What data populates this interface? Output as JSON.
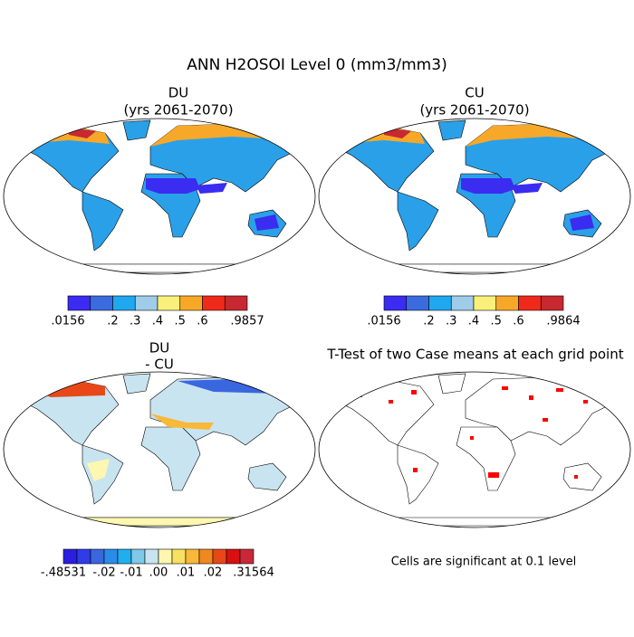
{
  "title": "ANN H2OSOI Level 0 (mm3/mm3)",
  "panels": [
    {
      "title": [
        "DU",
        "(yrs 2061-2070)"
      ],
      "colorbar": {
        "colors": [
          "#3a2cf0",
          "#3a6ce0",
          "#20a8ee",
          "#9fcce8",
          "#f8f07a",
          "#f8a828",
          "#f02a1a",
          "#c82830"
        ],
        "labels": [
          ".0156",
          ".2",
          ".3",
          ".4",
          ".5",
          ".6",
          ".9857"
        ]
      }
    },
    {
      "title": [
        "CU",
        "(yrs 2061-2070)"
      ],
      "colorbar": {
        "colors": [
          "#3a2cf0",
          "#3a6ce0",
          "#20a8ee",
          "#9fcce8",
          "#f8f07a",
          "#f8a828",
          "#f02a1a",
          "#c82830"
        ],
        "labels": [
          ".0156",
          ".2",
          ".3",
          ".4",
          ".5",
          ".6",
          ".9864"
        ]
      }
    },
    {
      "title": [
        "DU",
        "- CU"
      ],
      "colorbar": {
        "colors": [
          "#2b1ee0",
          "#2f3ce8",
          "#3a66e0",
          "#2a8ce8",
          "#20aeee",
          "#7ec8ea",
          "#c8e4f0",
          "#fdf7b0",
          "#f8e060",
          "#f8b838",
          "#f08820",
          "#e84818",
          "#d81010",
          "#c82838"
        ],
        "labels": [
          "-.48531",
          "-.02",
          "-.01",
          ".00",
          ".01",
          ".02",
          ".31564"
        ]
      }
    }
  ],
  "ttest": {
    "title": "T-Test of two Case means at each grid point",
    "note": "Cells are significant at 0.1 level"
  }
}
